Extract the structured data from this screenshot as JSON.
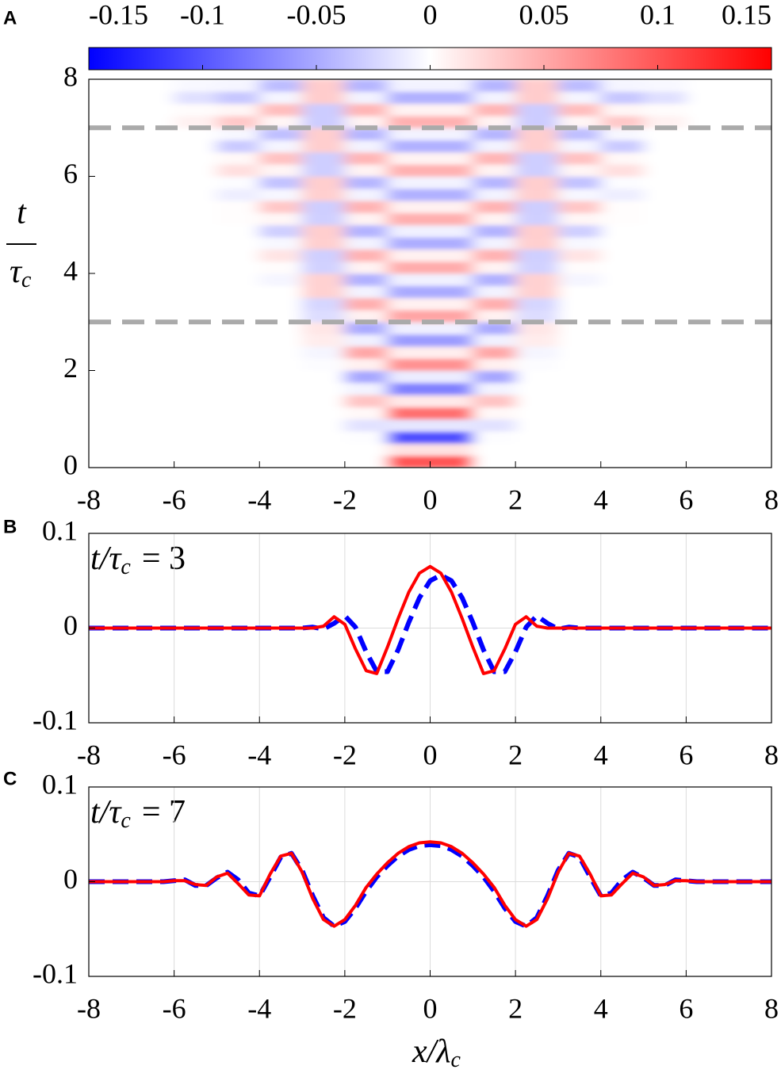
{
  "chart_data": [
    {
      "type": "heatmap",
      "panel_label": "A",
      "ylabel": [
        "t",
        "τ",
        "c"
      ],
      "colormap": [
        "#0000ff",
        "#ffffff",
        "#ff0000"
      ],
      "clim": [
        -0.15,
        0.15
      ],
      "cticks": [
        -0.15,
        -0.1,
        -0.05,
        0,
        0.05,
        0.1,
        0.15
      ],
      "xlim": [
        -8,
        8
      ],
      "xticks": [
        -8,
        -6,
        -4,
        -2,
        0,
        2,
        4,
        6,
        8
      ],
      "ylim": [
        0,
        8
      ],
      "yticks": [
        0,
        2,
        4,
        6,
        8
      ],
      "grid": false,
      "hlines": [
        3,
        7
      ],
      "hline_color": "#aaaaaa",
      "x": [
        -7.5,
        -6.5,
        -5.5,
        -4.5,
        -3.5,
        -2.5,
        -1.5,
        -0.5,
        0.5,
        1.5,
        2.5,
        3.5,
        4.5,
        5.5,
        6.5,
        7.5
      ],
      "y": [
        0.125,
        0.375,
        0.625,
        0.875,
        1.125,
        1.375,
        1.625,
        1.875,
        2.125,
        2.375,
        2.625,
        2.875,
        3.125,
        3.375,
        3.625,
        3.875,
        4.125,
        4.375,
        4.625,
        4.875,
        5.125,
        5.375,
        5.625,
        5.875,
        6.125,
        6.375,
        6.625,
        6.875,
        7.125,
        7.375,
        7.625,
        7.875
      ],
      "z": [
        [
          0,
          0,
          0,
          0,
          0,
          0,
          0,
          0.1,
          0.1,
          0,
          0,
          0,
          0,
          0,
          0,
          0
        ],
        [
          0,
          0,
          0,
          0,
          0,
          0,
          0,
          0.017,
          0.017,
          0,
          0,
          0,
          0,
          0,
          0,
          0
        ],
        [
          0,
          0,
          0,
          0,
          0,
          0,
          -0.001,
          -0.103,
          -0.103,
          -0.001,
          0,
          0,
          0,
          0,
          0,
          0
        ],
        [
          0,
          0,
          0,
          0,
          0,
          0,
          -0.017,
          -0.015,
          -0.015,
          -0.017,
          0,
          0,
          0,
          0,
          0,
          0
        ],
        [
          0,
          0,
          0,
          0,
          0,
          0,
          0.004,
          0.085,
          0.085,
          0.004,
          0,
          0,
          0,
          0,
          0,
          0
        ],
        [
          0,
          0,
          0,
          0,
          0,
          0,
          0.035,
          0.013,
          0.013,
          0.035,
          0,
          0,
          0,
          0,
          0,
          0
        ],
        [
          0,
          0,
          0,
          0,
          0,
          0,
          -0.007,
          -0.074,
          -0.074,
          -0.007,
          0,
          0,
          0,
          0,
          0,
          0
        ],
        [
          0,
          0,
          0,
          0,
          0,
          0,
          -0.052,
          -0.011,
          -0.011,
          -0.052,
          0,
          0,
          0,
          0,
          0,
          0
        ],
        [
          0,
          0,
          0,
          0,
          0,
          -0.002,
          0.009,
          0.064,
          0.064,
          0.009,
          -0.002,
          0,
          0,
          0,
          0,
          0
        ],
        [
          0,
          0,
          0,
          0,
          0,
          -0.006,
          0.052,
          0.01,
          0.01,
          0.052,
          -0.006,
          0,
          0,
          0,
          0,
          0
        ],
        [
          0,
          0,
          0,
          0,
          0,
          0.011,
          -0.008,
          -0.058,
          -0.058,
          -0.008,
          0.011,
          0,
          0,
          0,
          0,
          0
        ],
        [
          0,
          0,
          0,
          0,
          0,
          0.015,
          -0.05,
          -0.009,
          -0.009,
          -0.05,
          0.015,
          0,
          0,
          0,
          0,
          0
        ],
        [
          0,
          0,
          0,
          0,
          0,
          -0.02,
          0.008,
          0.053,
          0.053,
          0.008,
          -0.02,
          0,
          0,
          0,
          0,
          0
        ],
        [
          0,
          0,
          0,
          0,
          0,
          -0.024,
          0.047,
          0.008,
          0.008,
          0.047,
          -0.024,
          0,
          0,
          0,
          0,
          0
        ],
        [
          0,
          0,
          0,
          0,
          0,
          0.027,
          -0.007,
          -0.05,
          -0.05,
          -0.007,
          0.027,
          0,
          0,
          0,
          0,
          0
        ],
        [
          0,
          0,
          0,
          0,
          -0.006,
          0.027,
          -0.046,
          -0.008,
          -0.008,
          -0.046,
          0.027,
          -0.006,
          0,
          0,
          0,
          0
        ],
        [
          0,
          0,
          0,
          0,
          0.002,
          -0.027,
          0.007,
          0.049,
          0.049,
          0.007,
          -0.027,
          0.002,
          0,
          0,
          0,
          0
        ],
        [
          0,
          0,
          0,
          0,
          0.016,
          -0.028,
          0.045,
          0.008,
          0.008,
          0.045,
          -0.028,
          0.016,
          0,
          0,
          0,
          0
        ],
        [
          0,
          0,
          0,
          0,
          -0.004,
          0.028,
          -0.007,
          -0.048,
          -0.048,
          -0.007,
          0.028,
          -0.004,
          0,
          0,
          0,
          0
        ],
        [
          0,
          0,
          0,
          0,
          -0.028,
          0.029,
          -0.045,
          -0.008,
          -0.008,
          -0.045,
          0.029,
          -0.028,
          0,
          0,
          0,
          0
        ],
        [
          0,
          0,
          0,
          0.001,
          0.005,
          -0.028,
          0.007,
          0.047,
          0.047,
          0.007,
          -0.028,
          0.005,
          0.001,
          0,
          0,
          0
        ],
        [
          0,
          0,
          0,
          0.001,
          0.033,
          -0.029,
          0.044,
          0.008,
          0.008,
          0.044,
          -0.029,
          0.033,
          0.001,
          0,
          0,
          0
        ],
        [
          0,
          0,
          0,
          -0.01,
          -0.005,
          0.028,
          -0.007,
          -0.046,
          -0.046,
          -0.007,
          0.028,
          -0.005,
          -0.01,
          0,
          0,
          0
        ],
        [
          0,
          0,
          0,
          -0.002,
          -0.035,
          0.029,
          -0.043,
          -0.007,
          -0.007,
          -0.043,
          0.029,
          -0.035,
          -0.002,
          0,
          0,
          0
        ],
        [
          0,
          0,
          0,
          0.019,
          0.006,
          -0.029,
          0.007,
          0.046,
          0.046,
          0.007,
          -0.029,
          0.006,
          0.019,
          0,
          0,
          0
        ],
        [
          0,
          0,
          0,
          0.004,
          0.036,
          -0.029,
          0.043,
          0.007,
          0.007,
          0.043,
          -0.029,
          0.036,
          0.004,
          0,
          0,
          0
        ],
        [
          0,
          0,
          0,
          -0.031,
          -0.006,
          0.029,
          -0.007,
          -0.046,
          -0.046,
          -0.007,
          0.029,
          -0.006,
          -0.031,
          0,
          0,
          0
        ],
        [
          0,
          0,
          0,
          -0.005,
          -0.037,
          0.029,
          -0.043,
          -0.007,
          -0.007,
          -0.043,
          0.029,
          -0.037,
          -0.005,
          0,
          0,
          0
        ],
        [
          0,
          0,
          0.008,
          0.032,
          0.006,
          -0.03,
          0.007,
          0.046,
          0.046,
          0.007,
          -0.03,
          0.006,
          0.032,
          0.008,
          0,
          0
        ],
        [
          0,
          0,
          0.002,
          0.005,
          0.038,
          -0.03,
          0.043,
          0.007,
          0.007,
          0.043,
          -0.03,
          0.038,
          0.005,
          0.002,
          0,
          0
        ],
        [
          0,
          0,
          -0.018,
          -0.033,
          -0.006,
          0.03,
          -0.007,
          -0.046,
          -0.046,
          -0.007,
          0.03,
          -0.006,
          -0.033,
          -0.018,
          0,
          0
        ],
        [
          0,
          0,
          -0.004,
          -0.006,
          -0.039,
          0.03,
          -0.043,
          -0.007,
          -0.007,
          -0.043,
          0.03,
          -0.039,
          -0.006,
          -0.004,
          0,
          0
        ]
      ]
    },
    {
      "type": "line",
      "panel_label": "B",
      "annotation": [
        "t/τ",
        "c",
        "= 3"
      ],
      "xlim": [
        -8,
        8
      ],
      "xticks": [
        -8,
        -6,
        -4,
        -2,
        0,
        2,
        4,
        6,
        8
      ],
      "ylim": [
        -0.1,
        0.1
      ],
      "yticks": [
        -0.1,
        0,
        0.1
      ],
      "grid": true,
      "x": [
        -8,
        -7.75,
        -7.5,
        -7.25,
        -7,
        -6.75,
        -6.5,
        -6.25,
        -6,
        -5.75,
        -5.5,
        -5.25,
        -5,
        -4.75,
        -4.5,
        -4.25,
        -4,
        -3.75,
        -3.5,
        -3.25,
        -3,
        -2.75,
        -2.5,
        -2.25,
        -2,
        -1.75,
        -1.5,
        -1.25,
        -1,
        -0.75,
        -0.5,
        -0.25,
        0,
        0.25,
        0.5,
        0.75,
        1,
        1.25,
        1.5,
        1.75,
        2,
        2.25,
        2.5,
        2.75,
        3,
        3.25,
        3.5,
        3.75,
        4,
        4.25,
        4.5,
        4.75,
        5,
        5.25,
        5.5,
        5.75,
        6,
        6.25,
        6.5,
        6.75,
        7,
        7.25,
        7.5,
        7.75,
        8
      ],
      "series": [
        {
          "color": "#0000ff",
          "style": "dashed",
          "values": [
            0,
            0,
            0,
            0,
            0,
            0,
            0,
            0,
            0,
            0,
            0,
            0,
            0,
            0,
            0,
            0,
            0,
            0,
            0,
            0,
            0,
            0.001,
            -0.001,
            0.005,
            0.013,
            0.001,
            -0.025,
            -0.046,
            -0.046,
            -0.023,
            0.006,
            0.032,
            0.05,
            0.056,
            0.05,
            0.032,
            0.006,
            -0.023,
            -0.046,
            -0.046,
            -0.025,
            0.001,
            0.013,
            0.005,
            -0.001,
            0.001,
            0,
            0,
            0,
            0,
            0,
            0,
            0,
            0,
            0,
            0,
            0,
            0,
            0,
            0,
            0,
            0,
            0,
            0,
            0
          ]
        },
        {
          "color": "#ff0000",
          "style": "solid",
          "values": [
            0,
            0,
            0,
            0,
            0,
            0,
            0,
            0,
            0,
            0,
            0,
            0,
            0,
            0,
            0,
            0,
            0,
            0,
            0,
            0,
            0,
            0,
            0.002,
            0.012,
            0.004,
            -0.022,
            -0.045,
            -0.048,
            -0.02,
            0.01,
            0.038,
            0.058,
            0.065,
            0.058,
            0.038,
            0.01,
            -0.02,
            -0.048,
            -0.045,
            -0.022,
            0.004,
            0.012,
            0.002,
            0,
            0,
            0,
            0,
            0,
            0,
            0,
            0,
            0,
            0,
            0,
            0,
            0,
            0,
            0,
            0,
            0,
            0,
            0,
            0,
            0,
            0
          ]
        }
      ]
    },
    {
      "type": "line",
      "panel_label": "C",
      "annotation": [
        "t/τ",
        "c",
        "= 7"
      ],
      "xlabel": [
        "x/λ",
        "c"
      ],
      "xlim": [
        -8,
        8
      ],
      "xticks": [
        -8,
        -6,
        -4,
        -2,
        0,
        2,
        4,
        6,
        8
      ],
      "ylim": [
        -0.1,
        0.1
      ],
      "yticks": [
        -0.1,
        0,
        0.1
      ],
      "grid": true,
      "x": [
        -8,
        -7.75,
        -7.5,
        -7.25,
        -7,
        -6.75,
        -6.5,
        -6.25,
        -6,
        -5.75,
        -5.5,
        -5.25,
        -5,
        -4.75,
        -4.5,
        -4.25,
        -4,
        -3.75,
        -3.5,
        -3.25,
        -3,
        -2.75,
        -2.5,
        -2.25,
        -2,
        -1.75,
        -1.5,
        -1.25,
        -1,
        -0.75,
        -0.5,
        -0.25,
        0,
        0.25,
        0.5,
        0.75,
        1,
        1.25,
        1.5,
        1.75,
        2,
        2.25,
        2.5,
        2.75,
        3,
        3.25,
        3.5,
        3.75,
        4,
        4.25,
        4.5,
        4.75,
        5,
        5.25,
        5.5,
        5.75,
        6,
        6.25,
        6.5,
        6.75,
        7,
        7.25,
        7.5,
        7.75,
        8
      ],
      "series": [
        {
          "color": "#0000ff",
          "style": "dashed",
          "values": [
            0,
            0,
            0,
            0,
            0,
            0,
            0,
            0,
            0.001,
            0.002,
            -0.004,
            -0.004,
            0.004,
            0.01,
            0.002,
            -0.012,
            -0.015,
            0.005,
            0.026,
            0.03,
            0.012,
            -0.015,
            -0.038,
            -0.047,
            -0.042,
            -0.028,
            -0.01,
            0.005,
            0.017,
            0.027,
            0.034,
            0.038,
            0.039,
            0.038,
            0.034,
            0.027,
            0.017,
            0.005,
            -0.01,
            -0.028,
            -0.042,
            -0.047,
            -0.038,
            -0.015,
            0.012,
            0.03,
            0.026,
            0.005,
            -0.015,
            -0.012,
            0.002,
            0.01,
            0.004,
            -0.004,
            -0.004,
            0.002,
            0.001,
            0,
            0,
            0,
            0,
            0,
            0,
            0,
            0
          ]
        },
        {
          "color": "#ff0000",
          "style": "solid",
          "values": [
            0,
            0,
            0,
            0,
            0,
            0,
            0,
            0,
            0.001,
            0.001,
            -0.003,
            -0.004,
            0.005,
            0.009,
            -0.002,
            -0.014,
            -0.015,
            0.008,
            0.027,
            0.03,
            0.01,
            -0.018,
            -0.04,
            -0.047,
            -0.04,
            -0.025,
            -0.006,
            0.008,
            0.02,
            0.03,
            0.037,
            0.041,
            0.042,
            0.041,
            0.037,
            0.03,
            0.02,
            0.008,
            -0.006,
            -0.025,
            -0.04,
            -0.047,
            -0.04,
            -0.018,
            0.01,
            0.03,
            0.027,
            0.008,
            -0.015,
            -0.014,
            -0.002,
            0.009,
            0.005,
            -0.004,
            -0.003,
            0.001,
            0.001,
            0,
            0,
            0,
            0,
            0,
            0,
            0,
            0
          ]
        }
      ]
    }
  ]
}
